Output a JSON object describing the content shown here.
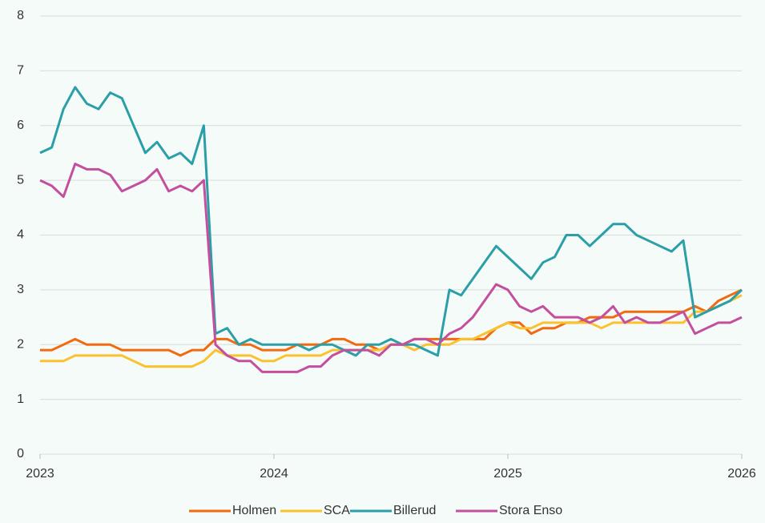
{
  "chart_data": {
    "type": "line",
    "x": [
      2023,
      2023.05,
      2023.1,
      2023.15,
      2023.2,
      2023.25,
      2023.3,
      2023.35,
      2023.4,
      2023.45,
      2023.5,
      2023.55,
      2023.6,
      2023.65,
      2023.7,
      2023.75,
      2023.8,
      2023.85,
      2023.9,
      2023.95,
      2024,
      2024.05,
      2024.1,
      2024.15,
      2024.2,
      2024.25,
      2024.3,
      2024.35,
      2024.4,
      2024.45,
      2024.5,
      2024.55,
      2024.6,
      2024.65,
      2024.7,
      2024.75,
      2024.8,
      2024.85,
      2024.9,
      2024.95,
      2025,
      2025.05,
      2025.1,
      2025.15,
      2025.2,
      2025.25,
      2025.3,
      2025.35,
      2025.4,
      2025.45,
      2025.5,
      2025.55,
      2025.6,
      2025.65,
      2025.7,
      2025.75,
      2025.8,
      2025.85,
      2025.9,
      2025.95,
      2026
    ],
    "series": [
      {
        "name": "Holmen",
        "color": "#f26a0f",
        "values": [
          1.9,
          1.9,
          2.0,
          2.1,
          2.0,
          2.0,
          2.0,
          1.9,
          1.9,
          1.9,
          1.9,
          1.9,
          1.8,
          1.9,
          1.9,
          2.1,
          2.1,
          2.0,
          2.0,
          1.9,
          1.9,
          1.9,
          2.0,
          2.0,
          2.0,
          2.1,
          2.1,
          2.0,
          2.0,
          1.9,
          2.0,
          2.0,
          2.1,
          2.1,
          2.1,
          2.1,
          2.1,
          2.1,
          2.1,
          2.3,
          2.4,
          2.4,
          2.2,
          2.3,
          2.3,
          2.4,
          2.4,
          2.5,
          2.5,
          2.5,
          2.6,
          2.6,
          2.6,
          2.6,
          2.6,
          2.6,
          2.7,
          2.6,
          2.8,
          2.9,
          3.0
        ]
      },
      {
        "name": "SCA",
        "color": "#f9c22e",
        "values": [
          1.7,
          1.7,
          1.7,
          1.8,
          1.8,
          1.8,
          1.8,
          1.8,
          1.7,
          1.6,
          1.6,
          1.6,
          1.6,
          1.6,
          1.7,
          1.9,
          1.8,
          1.8,
          1.8,
          1.7,
          1.7,
          1.8,
          1.8,
          1.8,
          1.8,
          1.9,
          1.9,
          1.9,
          1.9,
          1.9,
          2.0,
          2.0,
          1.9,
          2.0,
          2.0,
          2.0,
          2.1,
          2.1,
          2.2,
          2.3,
          2.4,
          2.3,
          2.3,
          2.4,
          2.4,
          2.4,
          2.4,
          2.4,
          2.3,
          2.4,
          2.4,
          2.4,
          2.4,
          2.4,
          2.4,
          2.4,
          2.6,
          2.6,
          2.7,
          2.8,
          2.9
        ]
      },
      {
        "name": "Billerud",
        "color": "#2a9fa8",
        "values": [
          5.5,
          5.6,
          6.3,
          6.7,
          6.4,
          6.3,
          6.6,
          6.5,
          6.0,
          5.5,
          5.7,
          5.4,
          5.5,
          5.3,
          6.0,
          2.2,
          2.3,
          2.0,
          2.1,
          2.0,
          2.0,
          2.0,
          2.0,
          1.9,
          2.0,
          2.0,
          1.9,
          1.8,
          2.0,
          2.0,
          2.1,
          2.0,
          2.0,
          1.9,
          1.8,
          3.0,
          2.9,
          3.2,
          3.5,
          3.8,
          3.6,
          3.4,
          3.2,
          3.5,
          3.6,
          4.0,
          4.0,
          3.8,
          4.0,
          4.2,
          4.2,
          4.0,
          3.9,
          3.8,
          3.7,
          3.9,
          2.5,
          2.6,
          2.7,
          2.8,
          3.0
        ]
      },
      {
        "name": "Stora Enso",
        "color": "#c34f9e",
        "values": [
          5.0,
          4.9,
          4.7,
          5.3,
          5.2,
          5.2,
          5.1,
          4.8,
          4.9,
          5.0,
          5.2,
          4.8,
          4.9,
          4.8,
          5.0,
          2.0,
          1.8,
          1.7,
          1.7,
          1.5,
          1.5,
          1.5,
          1.5,
          1.6,
          1.6,
          1.8,
          1.9,
          1.9,
          1.9,
          1.8,
          2.0,
          2.0,
          2.1,
          2.1,
          2.0,
          2.2,
          2.3,
          2.5,
          2.8,
          3.1,
          3.0,
          2.7,
          2.6,
          2.7,
          2.5,
          2.5,
          2.5,
          2.4,
          2.5,
          2.7,
          2.4,
          2.5,
          2.4,
          2.4,
          2.5,
          2.6,
          2.2,
          2.3,
          2.4,
          2.4,
          2.5
        ]
      }
    ],
    "xlim": [
      2023,
      2026
    ],
    "xticks": [
      2023,
      2024,
      2025,
      2026
    ],
    "ylim": [
      0,
      8
    ],
    "yticks": [
      0,
      1,
      2,
      3,
      4,
      5,
      6,
      7,
      8
    ],
    "grid": true,
    "legend": "bottom"
  }
}
